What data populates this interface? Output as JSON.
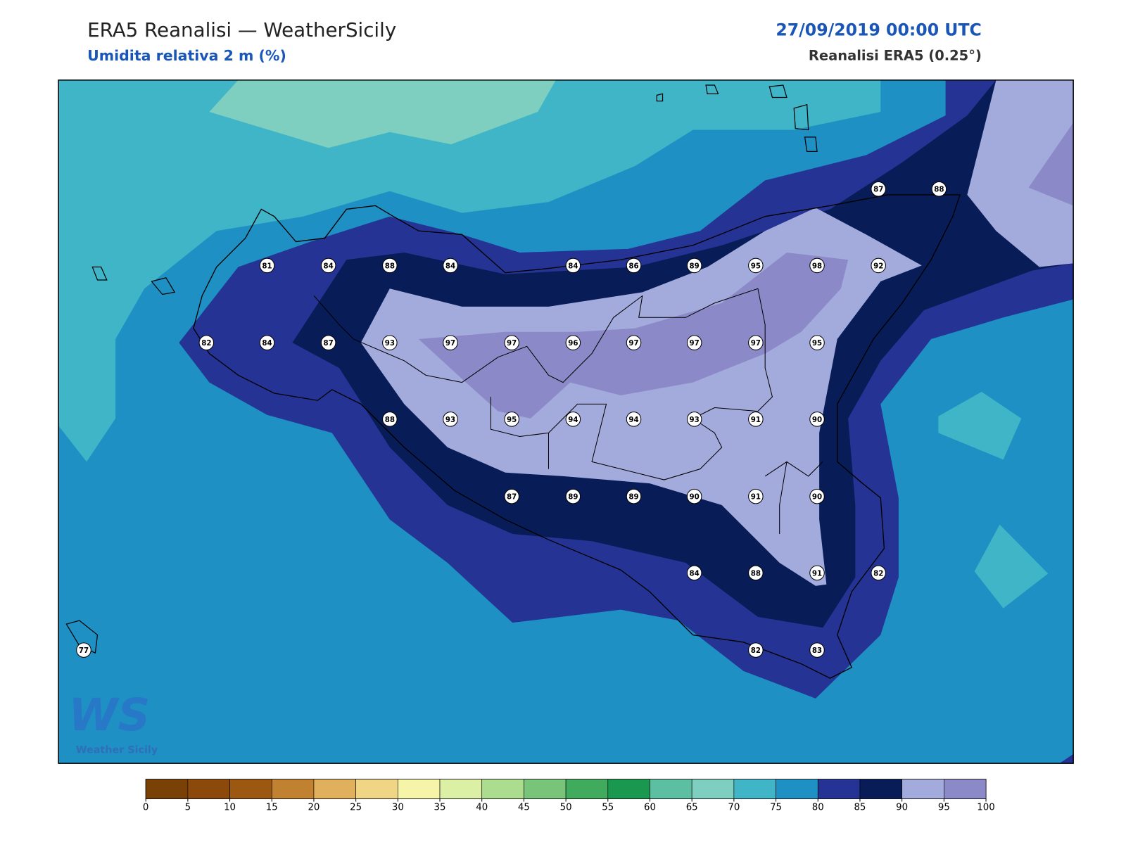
{
  "header": {
    "title": "ERA5 Reanalisi — WeatherSicily",
    "subtitle": "Umidita relativa 2 m (%)",
    "date": "27/09/2019 00:00 UTC",
    "source": "Reanalisi ERA5 (0.25°)"
  },
  "stations": [
    81,
    84,
    88,
    84,
    84,
    86,
    89,
    95,
    98,
    92,
    82,
    84,
    87,
    93,
    97,
    97,
    96,
    97,
    97,
    97,
    95,
    88,
    93,
    95,
    94,
    94,
    93,
    91,
    90,
    87,
    89,
    89,
    90,
    91,
    90,
    84,
    88,
    91,
    82,
    77,
    82,
    83,
    87,
    88
  ],
  "logo": {
    "mark": "WS",
    "text": "Weather Sicily"
  },
  "colorbar": {
    "ticks": [
      0,
      5,
      10,
      15,
      20,
      25,
      30,
      35,
      40,
      45,
      50,
      55,
      60,
      65,
      70,
      75,
      80,
      85,
      90,
      95,
      100
    ],
    "colors": [
      "#7a4106",
      "#8b4a0c",
      "#9c5711",
      "#c08230",
      "#e0b05c",
      "#f0d585",
      "#f6f4a8",
      "#dcf0a5",
      "#acdd8e",
      "#78c479",
      "#41ab5d",
      "#1a9850",
      "#5cbfa2",
      "#7fcfc0",
      "#40b5c7",
      "#1e90c3",
      "#253494",
      "#081d58",
      "#a3aadc",
      "#8c89c8"
    ]
  }
}
